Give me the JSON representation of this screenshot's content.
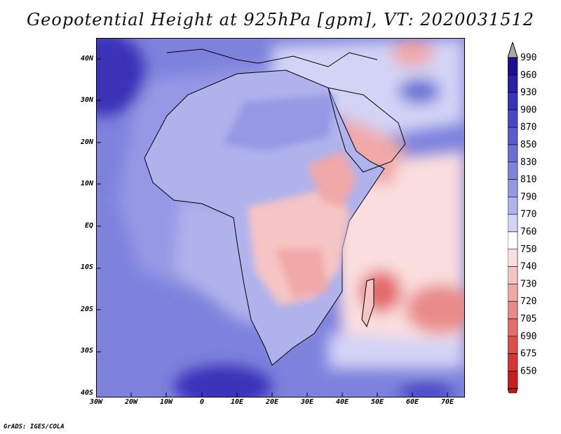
{
  "title": "Geopotential Height at 925hPa [gpm], VT: 2020031512",
  "footer": "GrADS: IGES/COLA",
  "y_axis": [
    "40N",
    "30N",
    "20N",
    "10N",
    "EQ",
    "10S",
    "20S",
    "30S",
    "40S"
  ],
  "x_axis": [
    "30W",
    "20W",
    "10W",
    "0",
    "10E",
    "20E",
    "30E",
    "40E",
    "50E",
    "60E",
    "70E"
  ],
  "colorbar": {
    "levels": [
      "990",
      "960",
      "930",
      "900",
      "870",
      "850",
      "830",
      "810",
      "790",
      "770",
      "760",
      "750",
      "740",
      "730",
      "720",
      "705",
      "690",
      "675",
      "650"
    ],
    "colors": [
      "#1f0f8f",
      "#2a20a6",
      "#3a33b8",
      "#4a47c4",
      "#5a5bcc",
      "#6b6fd4",
      "#7e82dc",
      "#9598e4",
      "#b0b2ec",
      "#d2d3f5",
      "#ffffff",
      "#fadede",
      "#f5c4c4",
      "#f0a8a8",
      "#ea8a8a",
      "#e36c6c",
      "#dc4f4f",
      "#d63535",
      "#c81e1e"
    ],
    "top_arrow": "#a8a8a8",
    "bottom_arrow": "#c0181d"
  },
  "map": {
    "ocean_color": "#7e82dc",
    "land_color": "#b0b2ec",
    "high_color": "#3a33b8",
    "low_color": "#ea8a8a"
  }
}
